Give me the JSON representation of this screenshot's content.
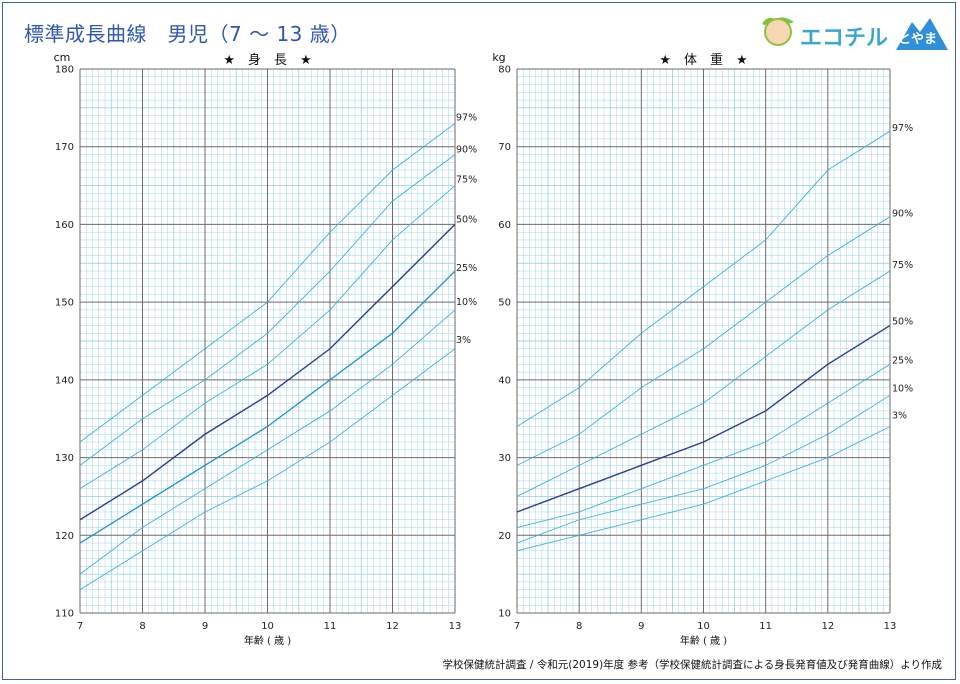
{
  "page": {
    "title": "標準成長曲線　男児（7 ～ 13 歳）",
    "footer": "学校保健統計調査 / 令和元(2019)年度 参考（学校保健統計調査による身長発育値及び発育曲線）より作成"
  },
  "logo": {
    "text": "エコチル",
    "badge": "とやま"
  },
  "colors": {
    "title": "#2f56b4",
    "frame": "#3a5fb0",
    "fine_grid": "#9fd3ea",
    "major_grid": "#6b6b6b",
    "percentile": "#3fb0df",
    "median": "#2a3e8f",
    "highlight_25": "#1f8fd0"
  },
  "chart_data": [
    {
      "type": "line",
      "title": "★　身　長　★",
      "ylabel": "cm",
      "xlabel": "年齢 ( 歳 )",
      "x": [
        7,
        8,
        9,
        10,
        11,
        12,
        13
      ],
      "xlim": [
        7,
        13
      ],
      "ylim": [
        110,
        180
      ],
      "yticks": [
        110,
        120,
        130,
        140,
        150,
        160,
        170,
        180
      ],
      "grid": true,
      "series": [
        {
          "name": "97%",
          "values": [
            132,
            138,
            144,
            150,
            159,
            167,
            173
          ]
        },
        {
          "name": "90%",
          "values": [
            129,
            135,
            140,
            146,
            154,
            163,
            169
          ]
        },
        {
          "name": "75%",
          "values": [
            126,
            131,
            137,
            142,
            149,
            158,
            165
          ]
        },
        {
          "name": "50%",
          "values": [
            122,
            127,
            133,
            138,
            144,
            152,
            160
          ]
        },
        {
          "name": "25%",
          "values": [
            119,
            124,
            129,
            134,
            140,
            146,
            154
          ]
        },
        {
          "name": "10%",
          "values": [
            115,
            121,
            126,
            131,
            136,
            142,
            149
          ]
        },
        {
          "name": "3%",
          "values": [
            113,
            118,
            123,
            127,
            132,
            138,
            144
          ]
        }
      ]
    },
    {
      "type": "line",
      "title": "★　体　重　★",
      "ylabel": "kg",
      "xlabel": "年齢 ( 歳 )",
      "x": [
        7,
        8,
        9,
        10,
        11,
        12,
        13
      ],
      "xlim": [
        7,
        13
      ],
      "ylim": [
        10,
        80
      ],
      "yticks": [
        10,
        20,
        30,
        40,
        50,
        60,
        70,
        80
      ],
      "grid": true,
      "series": [
        {
          "name": "97%",
          "values": [
            34,
            39,
            46,
            52,
            58,
            67,
            72
          ]
        },
        {
          "name": "90%",
          "values": [
            29,
            33,
            39,
            44,
            50,
            56,
            61
          ]
        },
        {
          "name": "75%",
          "values": [
            25,
            29,
            33,
            37,
            43,
            49,
            54
          ]
        },
        {
          "name": "50%",
          "values": [
            23,
            26,
            29,
            32,
            36,
            42,
            47
          ]
        },
        {
          "name": "25%",
          "values": [
            21,
            23,
            26,
            29,
            32,
            37,
            42
          ]
        },
        {
          "name": "10%",
          "values": [
            19,
            22,
            24,
            26,
            29,
            33,
            38
          ]
        },
        {
          "name": "3%",
          "values": [
            18,
            20,
            22,
            24,
            27,
            30,
            34
          ]
        }
      ]
    }
  ]
}
